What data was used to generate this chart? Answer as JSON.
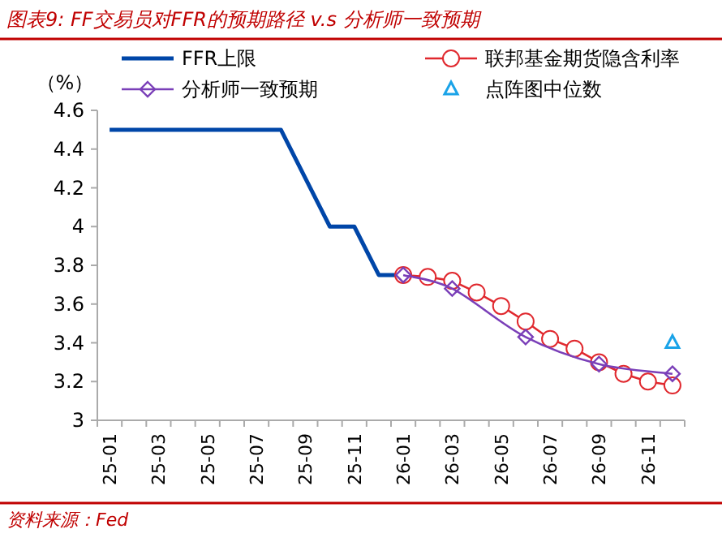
{
  "chart_data": {
    "type": "line",
    "title": "图表9: FF交易员对FFR的预期路径 v.s 分析师一致预期",
    "ylabel": "（%）",
    "annotations": [
      "资料来源：Fed"
    ],
    "categories": [
      "25-01",
      null,
      "25-03",
      null,
      "25-05",
      null,
      "25-07",
      null,
      "25-09",
      null,
      "25-11",
      null,
      "26-01",
      null,
      "26-03",
      null,
      "26-05",
      null,
      "26-07",
      null,
      "26-09",
      null,
      "26-11",
      null
    ],
    "ylim": [
      3,
      4.6
    ],
    "yticks": [
      3,
      3.2,
      3.4,
      3.6,
      3.8,
      4,
      4.2,
      4.4,
      4.6
    ],
    "grid": false,
    "legend": "top",
    "series": [
      {
        "name": "FFR上限",
        "color": "#0046a8",
        "marker": "none",
        "values": [
          4.5,
          4.5,
          4.5,
          4.5,
          4.5,
          4.5,
          4.5,
          4.5,
          4.25,
          4.0,
          4.0,
          3.75,
          3.75,
          null,
          null,
          null,
          null,
          null,
          null,
          null,
          null,
          null,
          null,
          null
        ]
      },
      {
        "name": "联邦基金期货隐含利率",
        "color": "#e0282e",
        "marker": "circle",
        "values": [
          null,
          null,
          null,
          null,
          null,
          null,
          null,
          null,
          null,
          null,
          null,
          null,
          3.75,
          3.74,
          3.72,
          3.66,
          3.59,
          3.51,
          3.42,
          3.37,
          3.3,
          3.24,
          3.2,
          3.18
        ]
      },
      {
        "name": "分析师一致预期",
        "color": "#7a3fb8",
        "marker": "diamond",
        "values": [
          null,
          null,
          null,
          null,
          null,
          null,
          null,
          null,
          null,
          null,
          null,
          null,
          3.75,
          null,
          3.68,
          null,
          null,
          3.43,
          null,
          null,
          3.29,
          null,
          null,
          3.24
        ]
      },
      {
        "name": "点阵图中位数",
        "color": "#1aa3e8",
        "type": "scatter",
        "marker": "triangle",
        "values": [
          null,
          null,
          null,
          null,
          null,
          null,
          null,
          null,
          null,
          null,
          null,
          null,
          null,
          null,
          null,
          null,
          null,
          null,
          null,
          null,
          null,
          null,
          null,
          3.4
        ]
      }
    ]
  }
}
